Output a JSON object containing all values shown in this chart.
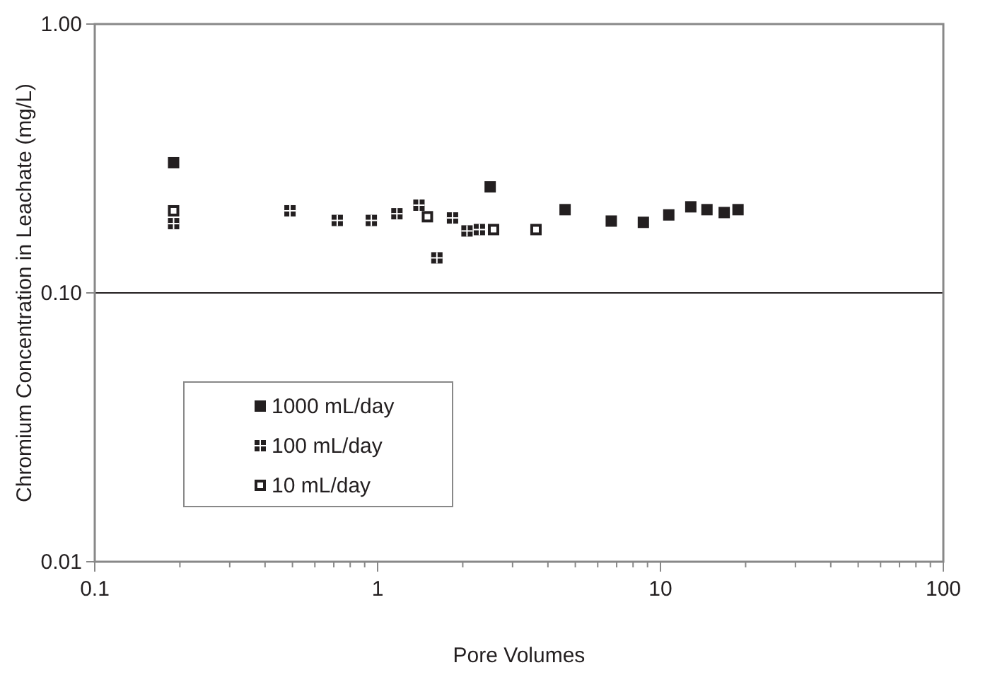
{
  "chart_data": {
    "type": "scatter",
    "xlabel": "Pore Volumes",
    "ylabel": "Chromium Concentration in Leachate (mg/L)",
    "log": "xy",
    "grid": "y",
    "legend": "left",
    "marker": "square",
    "xlim": [
      0.1,
      100
    ],
    "ylim": [
      0.01,
      1
    ],
    "xticks": [
      0.1,
      {
        "value": 0.2,
        "label": null
      },
      {
        "value": 0.3,
        "label": null
      },
      {
        "value": 0.4,
        "label": null
      },
      {
        "value": 0.5,
        "label": null
      },
      {
        "value": 0.6,
        "label": null
      },
      {
        "value": 0.7,
        "label": null
      },
      {
        "value": 0.8,
        "label": null
      },
      {
        "value": 0.9,
        "label": null
      },
      1,
      {
        "value": 2,
        "label": null
      },
      {
        "value": 3,
        "label": null
      },
      {
        "value": 4,
        "label": null
      },
      {
        "value": 5,
        "label": null
      },
      {
        "value": 6,
        "label": null
      },
      {
        "value": 7,
        "label": null
      },
      {
        "value": 8,
        "label": null
      },
      {
        "value": 9,
        "label": null
      },
      10,
      {
        "value": 20,
        "label": null
      },
      {
        "value": 30,
        "label": null
      },
      {
        "value": 40,
        "label": null
      },
      {
        "value": 50,
        "label": null
      },
      {
        "value": 60,
        "label": null
      },
      {
        "value": 70,
        "label": null
      },
      {
        "value": 80,
        "label": null
      },
      {
        "value": 90,
        "label": null
      },
      100
    ],
    "yticks": [
      {
        "value": 0.01,
        "label": "0.01"
      },
      {
        "value": 0.1,
        "label": "0.10"
      },
      {
        "value": 1,
        "label": "1.00"
      }
    ],
    "series": [
      {
        "name": "1000 mL/day",
        "color": "#231f20",
        "x": [
          0.19,
          2.5,
          4.6,
          6.7,
          8.7,
          10.7,
          12.8,
          14.6,
          16.8,
          18.8
        ],
        "values": [
          0.305,
          0.248,
          0.204,
          0.185,
          0.183,
          0.195,
          0.209,
          0.204,
          0.199,
          0.204
        ]
      },
      {
        "name": "100 mL/day",
        "color": "#231f20",
        "x": [
          0.19,
          0.49,
          0.72,
          0.95,
          1.17,
          1.4,
          1.62,
          1.84,
          2.07,
          2.29
        ],
        "values": [
          0.181,
          0.202,
          0.186,
          0.186,
          0.197,
          0.212,
          0.135,
          0.19,
          0.17,
          0.172
        ]
      },
      {
        "name": "10 mL/day",
        "color": "#231f20",
        "x": [
          0.19,
          1.5,
          2.57,
          3.63
        ],
        "values": [
          0.202,
          0.192,
          0.172,
          0.172
        ]
      }
    ]
  }
}
